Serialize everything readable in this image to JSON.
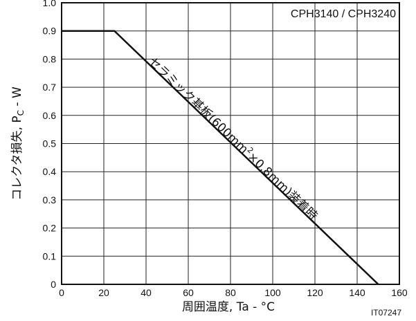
{
  "chart_data": {
    "type": "line",
    "title": "CPH3140 / CPH3240",
    "xlabel": "周囲温度, Ta - °C",
    "ylabel": "コレクタ損失, PC - W",
    "ylabel_main": "コレクタ損失, P",
    "ylabel_sub": "C",
    "ylabel_tail": " - W",
    "figure_code": "IT07247",
    "xlim": [
      0,
      160
    ],
    "ylim": [
      0,
      1.0
    ],
    "grid": true,
    "x_ticks": [
      "0",
      "20",
      "40",
      "60",
      "80",
      "100",
      "120",
      "140",
      "160"
    ],
    "y_ticks": [
      "0",
      "0.1",
      "0.2",
      "0.3",
      "0.4",
      "0.5",
      "0.6",
      "0.7",
      "0.8",
      "0.9",
      "1.0"
    ],
    "series": [
      {
        "name": "セラミック基板(600mm²×0.8mm)装着時",
        "x": [
          0,
          25,
          150
        ],
        "y": [
          0.9,
          0.9,
          0
        ]
      }
    ],
    "annotation": {
      "text_a": "セラミック基板(600mm",
      "text_sup": "2",
      "text_b": "×0.8mm)装着時"
    }
  }
}
